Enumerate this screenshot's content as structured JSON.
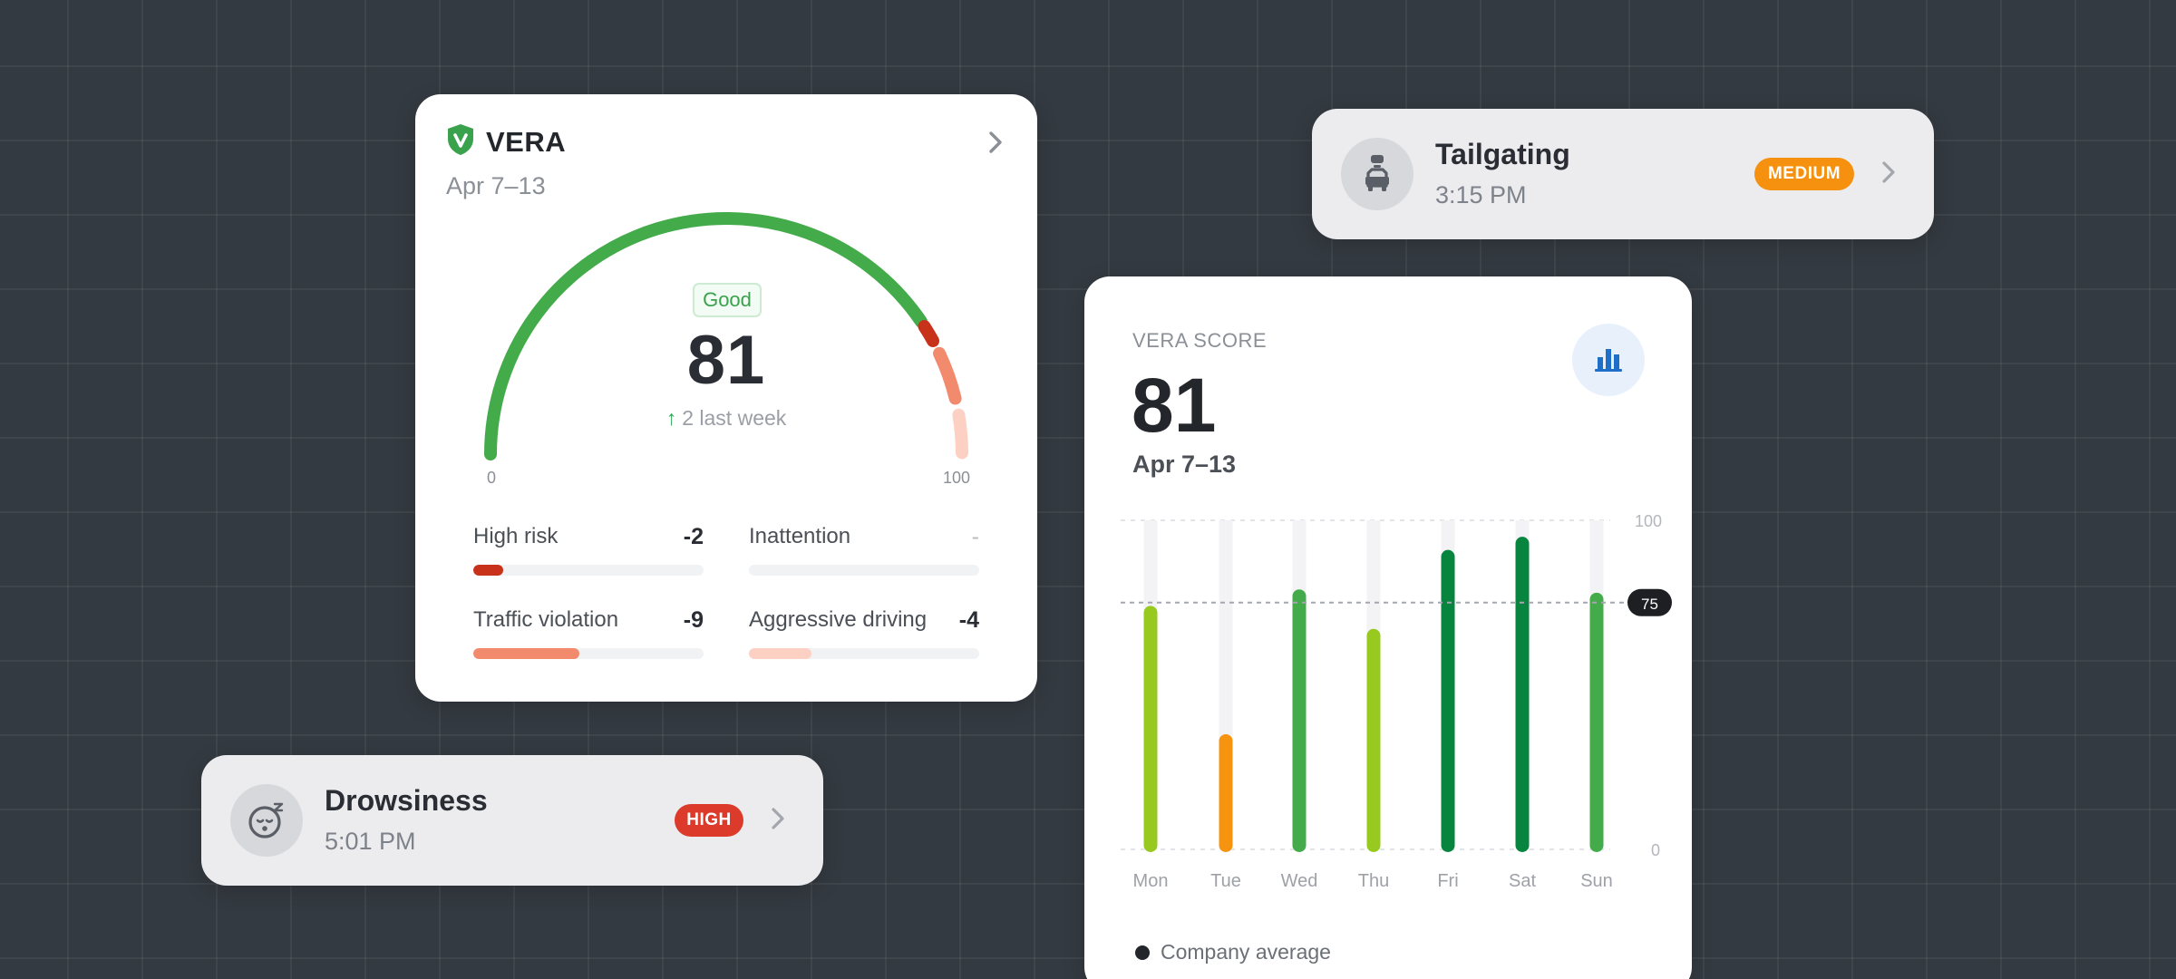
{
  "vera_card": {
    "title": "VERA",
    "date_range": "Apr 7–13",
    "status": "Good",
    "score": "81",
    "delta_text": "2 last week",
    "gauge_value": 81,
    "gauge_min_label": "0",
    "gauge_max_label": "100",
    "metrics": [
      {
        "label": "High risk",
        "value": "-2",
        "level": 0.13,
        "color": "#c8321a"
      },
      {
        "label": "Inattention",
        "value": "-",
        "level": 0,
        "color": "#e6e7ea"
      },
      {
        "label": "Traffic violation",
        "value": "-9",
        "level": 0.46,
        "color": "#f28a6e"
      },
      {
        "label": "Aggressive driving",
        "value": "-4",
        "level": 0.27,
        "color": "#fdd0c4"
      }
    ]
  },
  "score_card": {
    "label": "VERA SCORE",
    "score": "81",
    "date_range": "Apr 7–13",
    "legend_label": "Company average",
    "icon": "bar-chart-icon"
  },
  "chart_data": {
    "type": "bar",
    "categories": [
      "Mon",
      "Tue",
      "Wed",
      "Thu",
      "Fri",
      "Sat",
      "Sun"
    ],
    "values": [
      74,
      35,
      79,
      67,
      91,
      95,
      78
    ],
    "colors": [
      "#97c91e",
      "#f7940f",
      "#43ab4a",
      "#97c91e",
      "#07843e",
      "#07843e",
      "#43ab4a"
    ],
    "reference_line": {
      "label": "Company average",
      "value": 75,
      "value_label": "75"
    },
    "ylim": [
      0,
      100
    ],
    "yticks": [
      "100",
      "0"
    ],
    "grid": true
  },
  "events": {
    "tailgating": {
      "title": "Tailgating",
      "time": "3:15 PM",
      "severity": "MEDIUM",
      "color": "#f6900f",
      "icon": "tailgating-icon"
    },
    "drowsiness": {
      "title": "Drowsiness",
      "time": "5:01 PM",
      "severity": "HIGH",
      "color": "#dc3b2c",
      "icon": "drowsy-face-icon"
    }
  },
  "colors": {
    "gauge_good": "#43ab4a",
    "background": "#343a41"
  }
}
